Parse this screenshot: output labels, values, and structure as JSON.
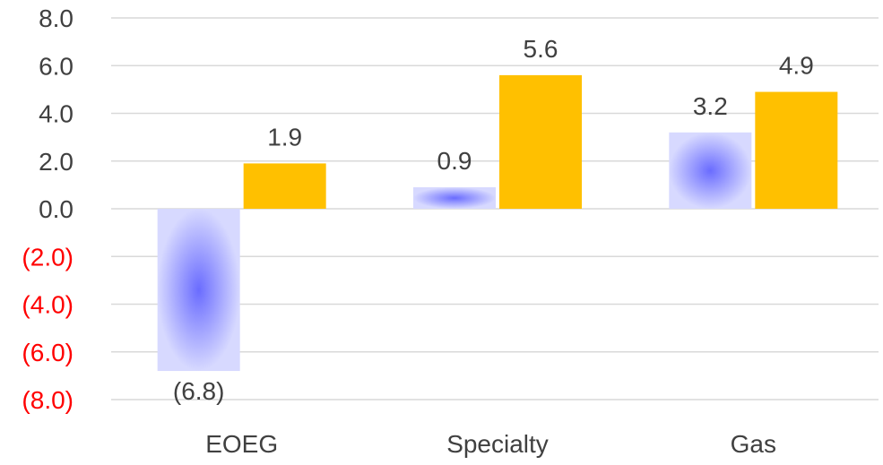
{
  "chart_data": {
    "type": "bar",
    "title": "",
    "xlabel": "",
    "ylabel": "",
    "categories": [
      "EOEG",
      "Specialty",
      "Gas"
    ],
    "series": [
      {
        "values": [
          -6.8,
          0.9,
          3.2
        ],
        "color": "#8080ff",
        "labels": [
          "(6.8)",
          "0.9",
          "3.2"
        ],
        "label_color": [
          "#ff0000",
          "#404040",
          "#404040"
        ]
      },
      {
        "values": [
          1.9,
          5.6,
          4.9
        ],
        "color": "#ffc000",
        "labels": [
          "1.9",
          "5.6",
          "4.9"
        ],
        "label_color": [
          "#404040",
          "#404040",
          "#404040"
        ]
      }
    ],
    "ylim": [
      -8,
      8
    ],
    "yticks": [
      8,
      6,
      4,
      2,
      0,
      -2,
      -4,
      -6,
      -8
    ],
    "ytick_labels": [
      "8.0",
      "6.0",
      "4.0",
      "2.0",
      "0.0",
      "(2.0)",
      "(4.0)",
      "(6.0)",
      "(8.0)"
    ],
    "positive_tick_color": "#404040",
    "negative_tick_color": "#ff0000",
    "grid": true,
    "legend": "none"
  }
}
